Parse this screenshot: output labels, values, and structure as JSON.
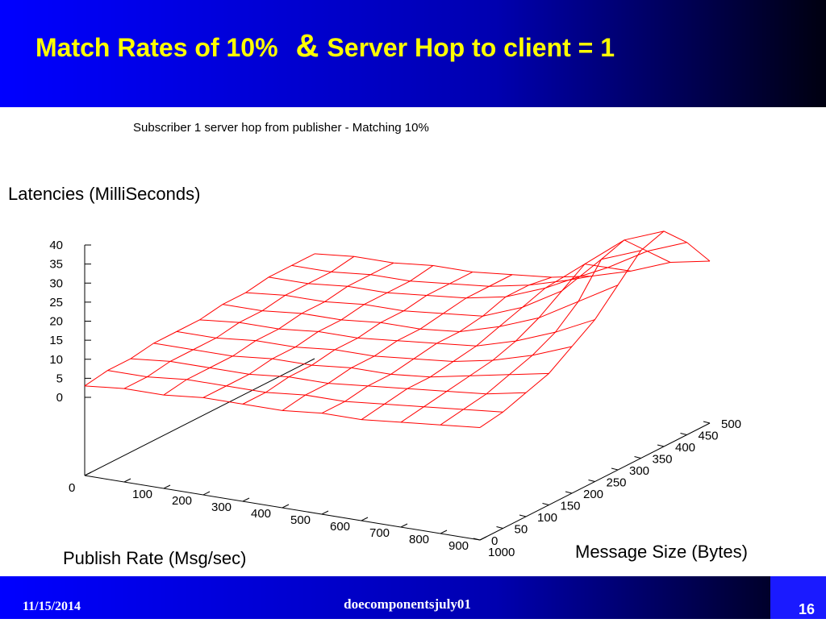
{
  "slide": {
    "title_parts": [
      "Match Rates of  10%",
      "&",
      "Server Hop to client = 1"
    ],
    "footer": {
      "date": "11/15/2014",
      "name": "doecomponentsjuly01",
      "page": "16"
    }
  },
  "chart_data": {
    "type": "surface3d",
    "title": "Subscriber 1 server hop from publisher - Matching 10%",
    "zlabel": "Latencies  (MilliSeconds)",
    "xlabel": "Publish Rate (Msg/sec)",
    "ylabel": "Message Size (Bytes)",
    "color": "#ff0000",
    "x": [
      0,
      100,
      200,
      300,
      400,
      500,
      600,
      700,
      800,
      900,
      1000
    ],
    "y": [
      0,
      50,
      100,
      150,
      200,
      250,
      300,
      350,
      400,
      450,
      500
    ],
    "xlim": [
      0,
      1000
    ],
    "ylim": [
      0,
      500
    ],
    "zlim": [
      0,
      40
    ],
    "xticks": [
      0,
      100,
      200,
      300,
      400,
      500,
      600,
      700,
      800,
      900,
      1000
    ],
    "yticks": [
      0,
      50,
      100,
      150,
      200,
      250,
      300,
      350,
      400,
      450,
      500
    ],
    "zticks": [
      0,
      5,
      10,
      15,
      20,
      25,
      30,
      35,
      40
    ],
    "z": [
      [
        3,
        4,
        4,
        5,
        5,
        5,
        6,
        6,
        7,
        8,
        9
      ],
      [
        4,
        4,
        5,
        5,
        5,
        6,
        6,
        7,
        8,
        9,
        10
      ],
      [
        4,
        5,
        5,
        5,
        6,
        6,
        7,
        8,
        9,
        10,
        12
      ],
      [
        5,
        5,
        5,
        6,
        6,
        7,
        7,
        8,
        10,
        12,
        14
      ],
      [
        5,
        5,
        6,
        6,
        7,
        7,
        8,
        9,
        11,
        14,
        18
      ],
      [
        5,
        6,
        6,
        7,
        7,
        8,
        9,
        10,
        13,
        17,
        22
      ],
      [
        6,
        6,
        7,
        7,
        8,
        8,
        9,
        12,
        16,
        22,
        28
      ],
      [
        6,
        7,
        7,
        8,
        8,
        9,
        10,
        14,
        20,
        30,
        34
      ],
      [
        7,
        7,
        8,
        8,
        9,
        10,
        12,
        16,
        24,
        32,
        36
      ],
      [
        7,
        7,
        8,
        8,
        9,
        10,
        12,
        15,
        20,
        26,
        30
      ],
      [
        7,
        8,
        8,
        9,
        9,
        10,
        11,
        13,
        16,
        20,
        22
      ]
    ]
  }
}
